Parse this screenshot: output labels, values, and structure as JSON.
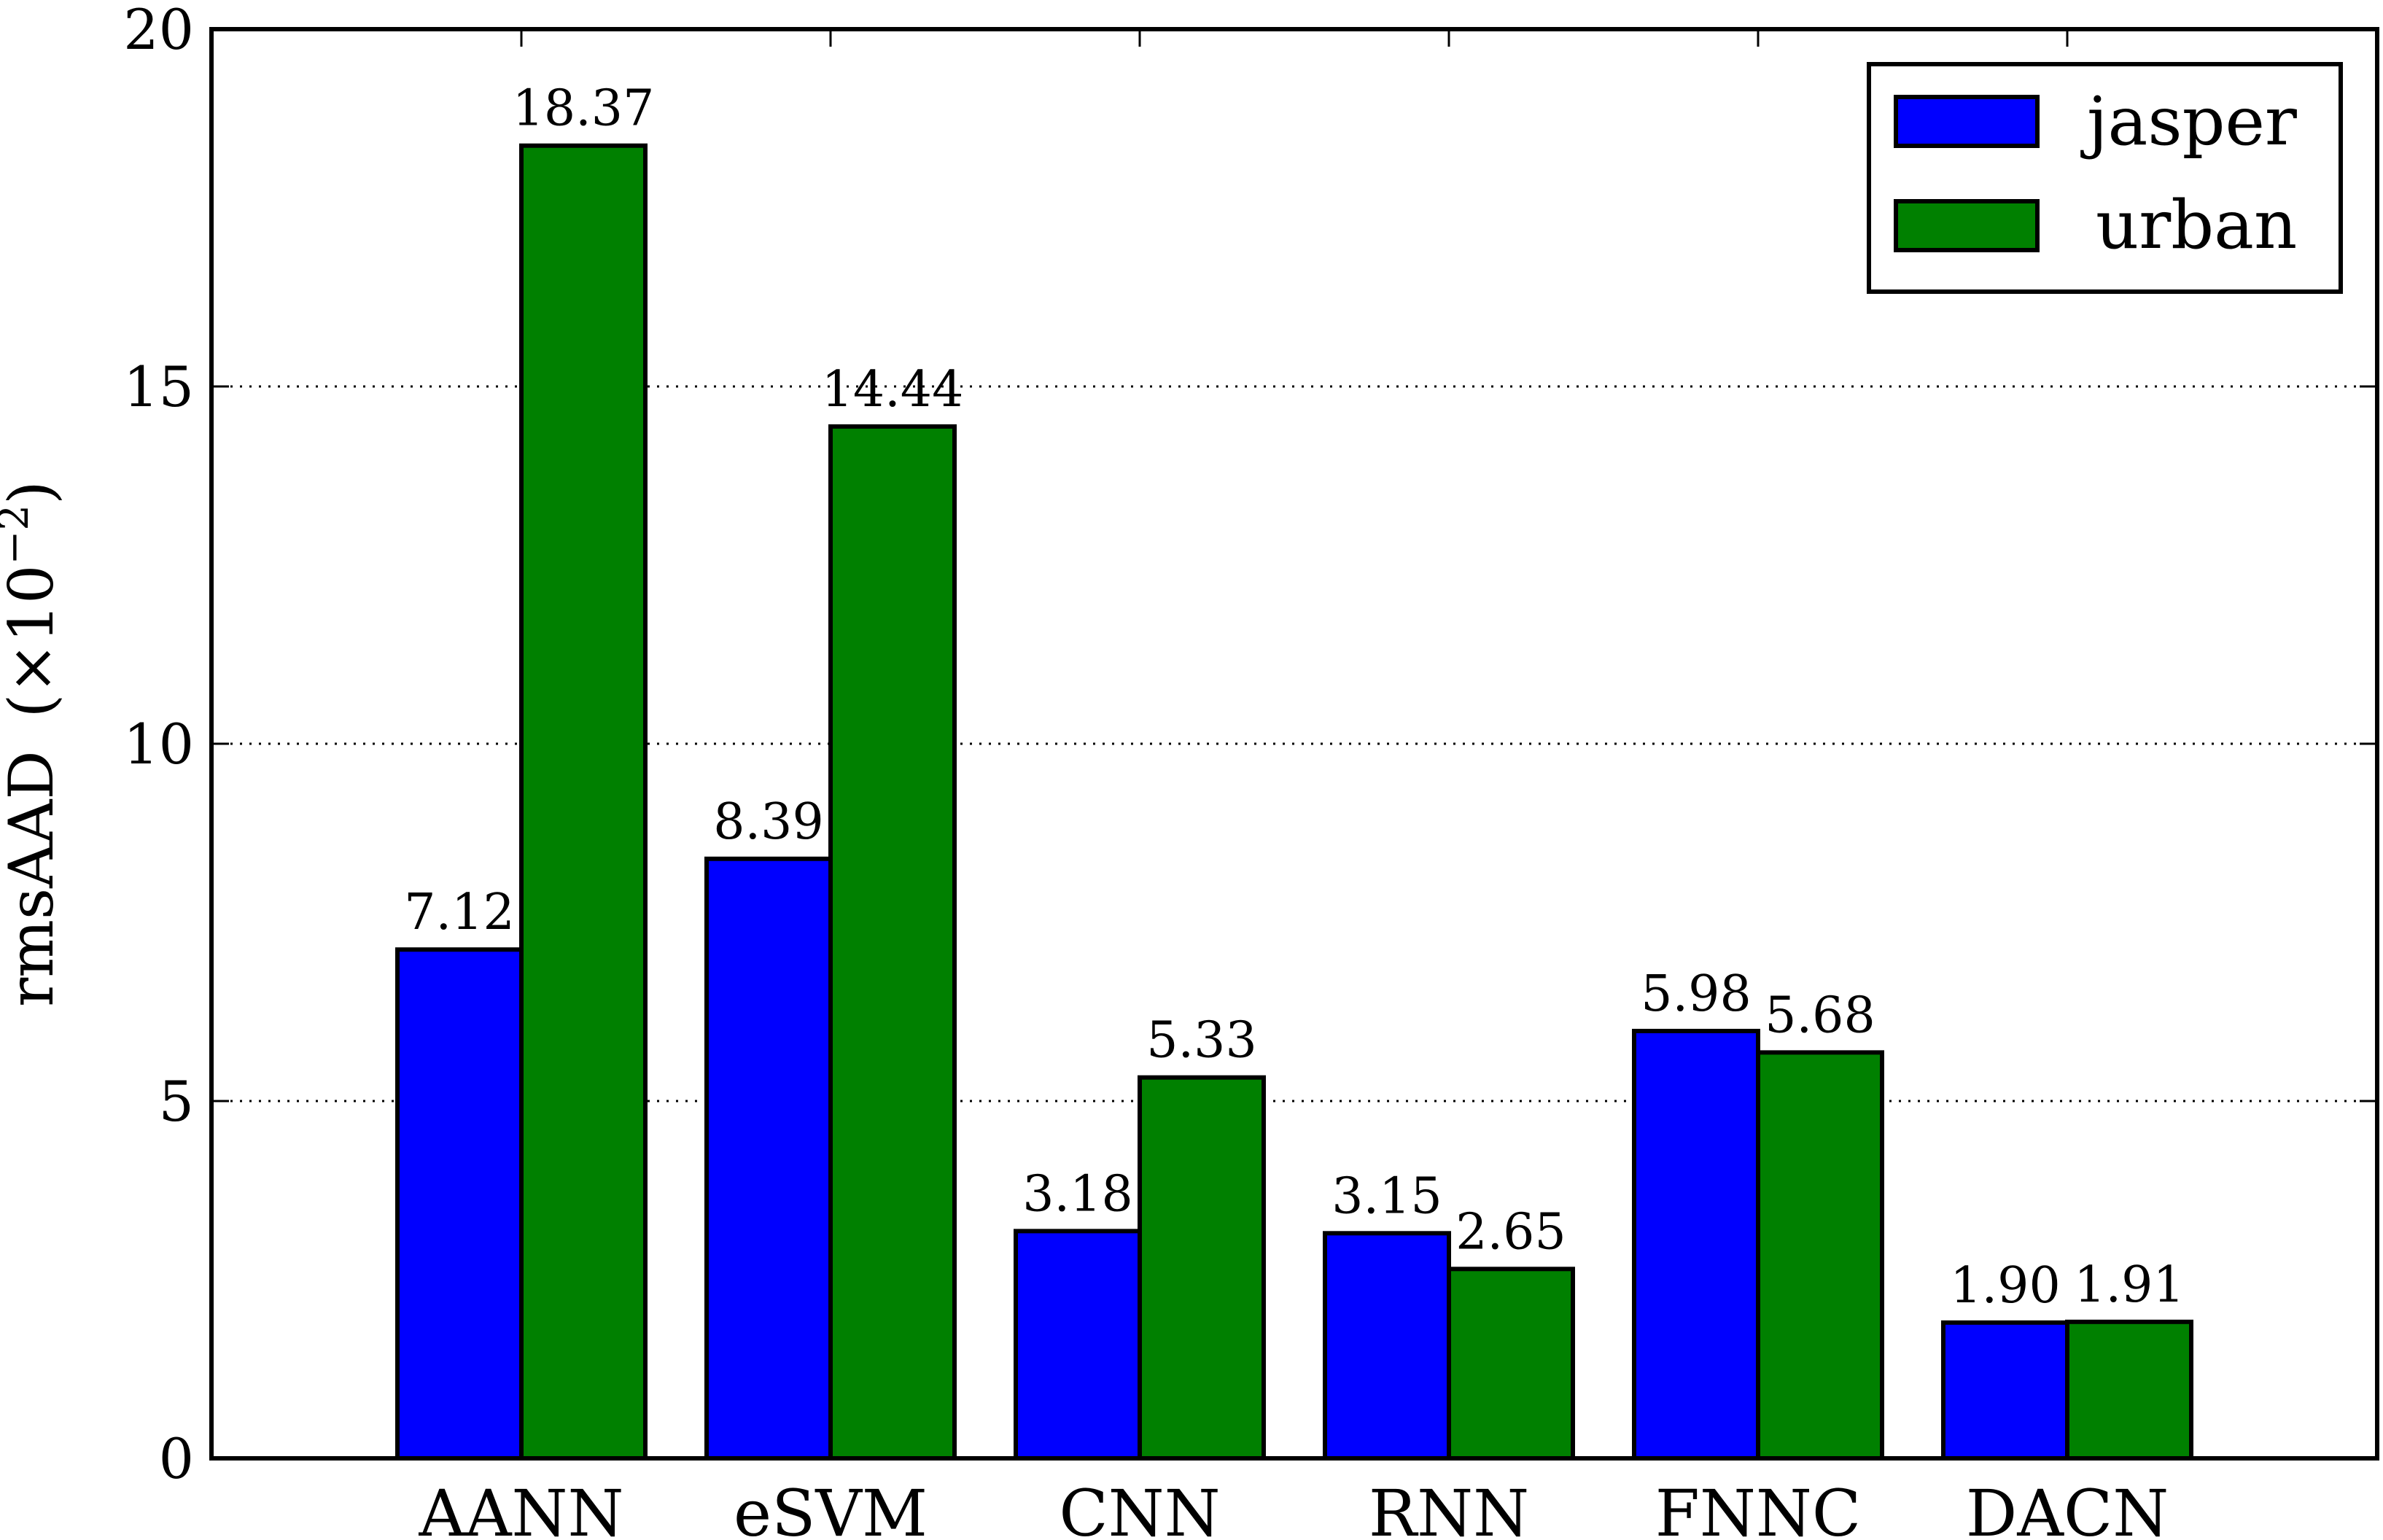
{
  "chart_data": {
    "type": "bar",
    "categories": [
      "AANN",
      "eSVM",
      "CNN",
      "RNN",
      "FNNC",
      "DACN"
    ],
    "series": [
      {
        "name": "jasper",
        "color": "#0000ff",
        "values": [
          7.12,
          8.39,
          3.18,
          3.15,
          5.98,
          1.9
        ],
        "labels": [
          "7.12",
          "8.39",
          "3.18",
          "3.15",
          "5.98",
          "1.90"
        ]
      },
      {
        "name": "urban",
        "color": "#008000",
        "values": [
          18.37,
          14.44,
          5.33,
          2.65,
          5.68,
          1.91
        ],
        "labels": [
          "18.37",
          "14.44",
          "5.33",
          "2.65",
          "5.68",
          "1.91"
        ]
      }
    ],
    "title": "",
    "xlabel": "",
    "ylabel": "rmsAAD",
    "ylabel_unit": "(×10",
    "ylabel_exp": "−2",
    "ylabel_close": ")",
    "ylim": [
      0,
      20
    ],
    "yticks": [
      0,
      5,
      10,
      15,
      20
    ],
    "grid": "y-dotted",
    "legend_position": "top-right"
  }
}
